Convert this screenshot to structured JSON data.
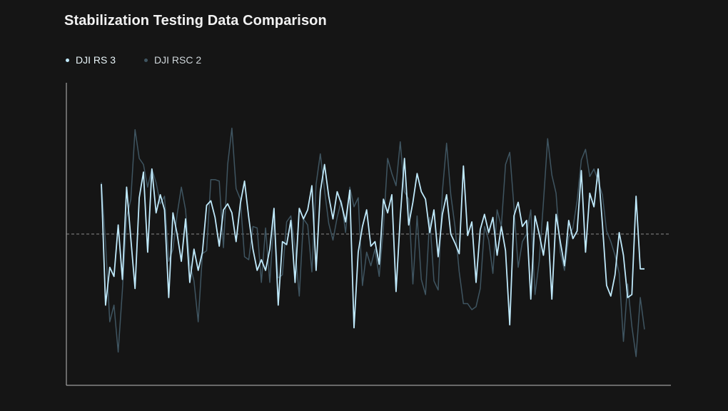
{
  "colors": {
    "background": "#151515",
    "rs3": "#bfe9fb",
    "rsc2": "#3f5561",
    "axis": "#bdbdbd",
    "baseline": "#8a8a8a"
  },
  "chart_data": {
    "type": "line",
    "title": "Stabilization Testing Data Comparison",
    "xlabel": "",
    "ylabel": "",
    "grid": false,
    "legend_position": "top-left",
    "baseline": 0,
    "ylim": [
      -1,
      1
    ],
    "series": [
      {
        "name": "DJI RS 3",
        "color": "#bfe9fb",
        "x": [
          0,
          1,
          2,
          3,
          4,
          5,
          6,
          7,
          8,
          9,
          10,
          11,
          12,
          13,
          14,
          15,
          16,
          17,
          18,
          19,
          20,
          21,
          22,
          23,
          24,
          25,
          26,
          27,
          28,
          29,
          30,
          31,
          32,
          33,
          34,
          35,
          36,
          37,
          38,
          39,
          40,
          41,
          42,
          43,
          44,
          45,
          46,
          47,
          48,
          49,
          50,
          51,
          52,
          53,
          54,
          55,
          56,
          57,
          58,
          59,
          60,
          61,
          62,
          63,
          64,
          65,
          66,
          67,
          68,
          69,
          70,
          71,
          72,
          73,
          74,
          75,
          76,
          77,
          78,
          79,
          80,
          81,
          82,
          83,
          84,
          85,
          86,
          87,
          88,
          89,
          90,
          91,
          92,
          93,
          94,
          95,
          96,
          97,
          98,
          99,
          100,
          101,
          102,
          103,
          104,
          105,
          106,
          107,
          108,
          109,
          110,
          111,
          112,
          113,
          114,
          115,
          116,
          117,
          118,
          119,
          120,
          121,
          122,
          123,
          124,
          125,
          126,
          127,
          128,
          129
        ],
        "values": [
          0.33,
          -0.47,
          -0.22,
          -0.28,
          0.06,
          -0.3,
          0.31,
          -0.03,
          -0.36,
          0.24,
          0.41,
          -0.12,
          0.43,
          0.14,
          0.26,
          0.16,
          -0.42,
          0.14,
          0.0,
          -0.18,
          0.1,
          -0.32,
          -0.1,
          -0.24,
          -0.12,
          0.19,
          0.22,
          0.11,
          -0.08,
          0.16,
          0.2,
          0.14,
          -0.05,
          0.2,
          0.35,
          0.11,
          -0.1,
          -0.24,
          -0.17,
          -0.24,
          -0.1,
          0.17,
          -0.47,
          -0.05,
          -0.07,
          0.09,
          -0.32,
          0.17,
          0.1,
          0.16,
          0.32,
          -0.24,
          0.28,
          0.46,
          0.25,
          0.1,
          0.28,
          0.2,
          0.08,
          0.29,
          -0.62,
          -0.12,
          0.05,
          0.16,
          -0.08,
          -0.05,
          -0.2,
          0.23,
          0.14,
          0.26,
          -0.38,
          0.11,
          0.5,
          0.06,
          0.21,
          0.4,
          0.28,
          0.23,
          0.01,
          0.16,
          -0.15,
          0.13,
          0.26,
          0.0,
          -0.06,
          -0.13,
          0.45,
          -0.01,
          0.08,
          -0.32,
          0.03,
          0.13,
          0.01,
          0.11,
          -0.14,
          0.05,
          -0.11,
          -0.6,
          0.12,
          0.21,
          0.05,
          0.09,
          -0.43,
          0.12,
          0.0,
          -0.14,
          0.08,
          -0.43,
          0.13,
          -0.05,
          -0.21,
          0.09,
          -0.03,
          0.02,
          0.42,
          -0.12,
          0.27,
          0.18,
          0.43,
          0.07,
          -0.34,
          -0.41,
          -0.27,
          0.01,
          -0.14,
          -0.42,
          -0.4,
          0.25,
          -0.23,
          -0.23
        ]
      },
      {
        "name": "DJI RSC 2",
        "color": "#3f5561",
        "x": [
          0,
          1,
          2,
          3,
          4,
          5,
          6,
          7,
          8,
          9,
          10,
          11,
          12,
          13,
          14,
          15,
          16,
          17,
          18,
          19,
          20,
          21,
          22,
          23,
          24,
          25,
          26,
          27,
          28,
          29,
          30,
          31,
          32,
          33,
          34,
          35,
          36,
          37,
          38,
          39,
          40,
          41,
          42,
          43,
          44,
          45,
          46,
          47,
          48,
          49,
          50,
          51,
          52,
          53,
          54,
          55,
          56,
          57,
          58,
          59,
          60,
          61,
          62,
          63,
          64,
          65,
          66,
          67,
          68,
          69,
          70,
          71,
          72,
          73,
          74,
          75,
          76,
          77,
          78,
          79,
          80,
          81,
          82,
          83,
          84,
          85,
          86,
          87,
          88,
          89,
          90,
          91,
          92,
          93,
          94,
          95,
          96,
          97,
          98,
          99,
          100,
          101,
          102,
          103,
          104,
          105,
          106,
          107,
          108,
          109,
          110,
          111,
          112,
          113,
          114,
          115,
          116,
          117,
          118,
          119,
          120,
          121,
          122,
          123,
          124,
          125,
          126,
          127,
          128,
          129
        ],
        "values": [
          0.34,
          -0.06,
          -0.58,
          -0.47,
          -0.78,
          -0.37,
          0.11,
          0.23,
          0.69,
          0.5,
          0.46,
          0.31,
          0.43,
          0.34,
          0.2,
          0.25,
          -0.18,
          -0.1,
          0.13,
          0.31,
          0.16,
          -0.2,
          -0.31,
          -0.58,
          -0.13,
          -0.11,
          0.36,
          0.36,
          0.35,
          -0.09,
          0.46,
          0.7,
          0.3,
          0.23,
          -0.15,
          -0.17,
          0.05,
          0.04,
          -0.32,
          0.04,
          -0.32,
          0.1,
          -0.29,
          -0.27,
          0.08,
          0.12,
          -0.09,
          -0.41,
          0.1,
          0.06,
          -0.25,
          0.33,
          0.53,
          0.29,
          0.07,
          -0.04,
          0.11,
          0.22,
          0.01,
          0.31,
          0.18,
          0.24,
          -0.34,
          -0.12,
          -0.21,
          -0.1,
          -0.28,
          0.04,
          0.5,
          0.4,
          0.32,
          0.61,
          0.28,
          0.23,
          -0.33,
          0.12,
          -0.3,
          -0.4,
          0.11,
          -0.31,
          -0.37,
          0.28,
          0.6,
          0.26,
          0.05,
          -0.25,
          -0.46,
          -0.46,
          -0.5,
          -0.48,
          -0.36,
          0.05,
          -0.04,
          -0.26,
          0.16,
          0.05,
          0.46,
          0.54,
          0.18,
          -0.22,
          -0.05,
          0.0,
          0.16,
          -0.4,
          -0.18,
          0.21,
          0.63,
          0.39,
          0.27,
          -0.12,
          -0.24,
          -0.02,
          0.04,
          0.22,
          0.49,
          0.56,
          0.38,
          0.43,
          0.35,
          0.26,
          0.02,
          -0.05,
          -0.14,
          -0.26,
          -0.71,
          -0.33,
          -0.61,
          -0.81,
          -0.42,
          -0.63
        ]
      }
    ]
  }
}
